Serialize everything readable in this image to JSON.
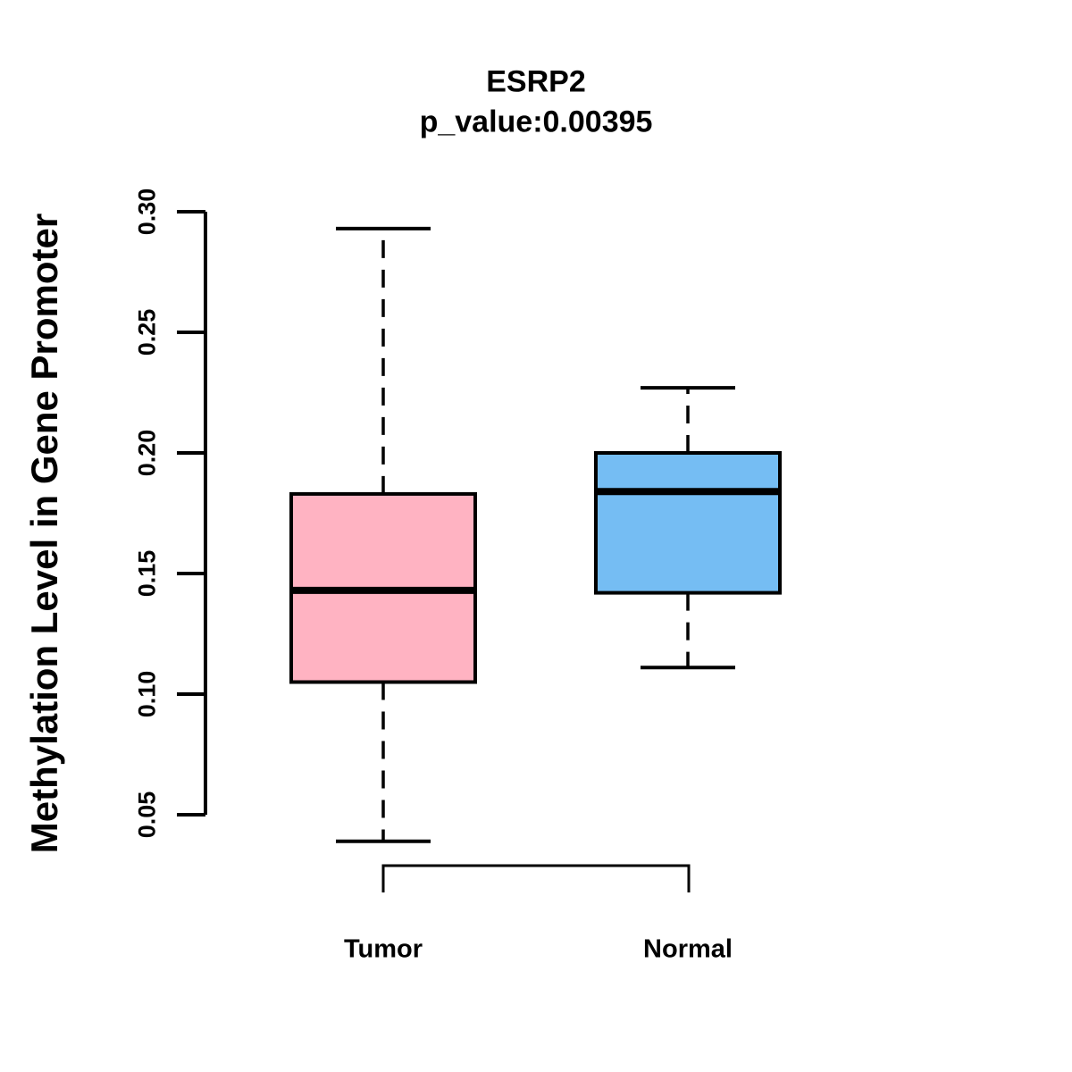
{
  "chart_data": {
    "type": "boxplot",
    "title": "ESRP2",
    "subtitle": "p_value:0.00395",
    "p_value": 0.00395,
    "ylabel": "Methylation Level in Gene Promoter",
    "categories": [
      "Tumor",
      "Normal"
    ],
    "ytick_labels": [
      "0.05",
      "0.10",
      "0.15",
      "0.20",
      "0.25",
      "0.30"
    ],
    "ylim": [
      0.05,
      0.3
    ],
    "grid": false,
    "legend": "none",
    "series": [
      {
        "name": "Tumor",
        "color": "#FFB3C2",
        "whisker_low": 0.039,
        "q1": 0.105,
        "median": 0.143,
        "q3": 0.183,
        "whisker_high": 0.293
      },
      {
        "name": "Normal",
        "color": "#75BDF3",
        "whisker_low": 0.111,
        "q1": 0.142,
        "median": 0.184,
        "q3": 0.2,
        "whisker_high": 0.227
      }
    ],
    "comparison_bracket": {
      "between": [
        "Tumor",
        "Normal"
      ]
    },
    "colors": {
      "box_border": "#000000",
      "median_line": "#000000",
      "axis": "#000000",
      "background": "#FFFFFF"
    }
  }
}
